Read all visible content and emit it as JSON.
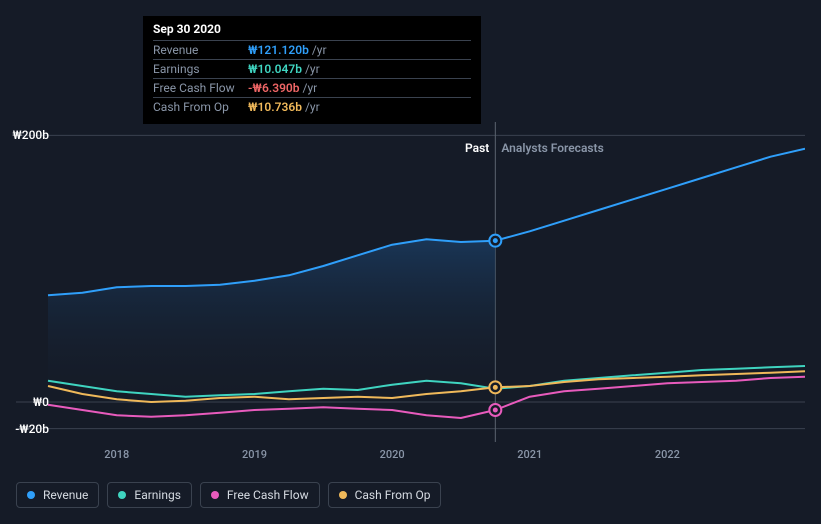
{
  "chart": {
    "sectionLabels": {
      "past": "Past",
      "forecast": "Analysts Forecasts"
    },
    "sectionLabelColors": {
      "past": "#ffffff",
      "forecast": "#8a96a8"
    },
    "yAxis": {
      "ticks": [
        {
          "value": 200,
          "label": "₩200b"
        },
        {
          "value": 0,
          "label": "₩0"
        },
        {
          "value": -20,
          "label": "-₩20b"
        }
      ],
      "min": -30,
      "max": 210
    },
    "xAxis": {
      "min": 2017.5,
      "max": 2023.0,
      "ticks": [
        {
          "value": 2018,
          "label": "2018"
        },
        {
          "value": 2019,
          "label": "2019"
        },
        {
          "value": 2020,
          "label": "2020"
        },
        {
          "value": 2021,
          "label": "2021"
        },
        {
          "value": 2022,
          "label": "2022"
        }
      ],
      "divider": 2020.75
    },
    "plot": {
      "leftPx": 32,
      "rightPx": 789,
      "topPx": 0,
      "bottomPx": 320
    },
    "gradient": {
      "from": "#1a3a5e",
      "to": "#151b27"
    },
    "series": [
      {
        "id": "revenue",
        "label": "Revenue",
        "color": "#2f9ffa",
        "data": [
          [
            2017.5,
            80
          ],
          [
            2017.75,
            82
          ],
          [
            2018.0,
            86
          ],
          [
            2018.25,
            87
          ],
          [
            2018.5,
            87
          ],
          [
            2018.75,
            88
          ],
          [
            2019.0,
            91
          ],
          [
            2019.25,
            95
          ],
          [
            2019.5,
            102
          ],
          [
            2019.75,
            110
          ],
          [
            2020.0,
            118
          ],
          [
            2020.25,
            122
          ],
          [
            2020.5,
            120
          ],
          [
            2020.75,
            121
          ],
          [
            2021.0,
            128
          ],
          [
            2021.25,
            136
          ],
          [
            2021.5,
            144
          ],
          [
            2021.75,
            152
          ],
          [
            2022.0,
            160
          ],
          [
            2022.25,
            168
          ],
          [
            2022.5,
            176
          ],
          [
            2022.75,
            184
          ],
          [
            2023.0,
            190
          ]
        ]
      },
      {
        "id": "earnings",
        "label": "Earnings",
        "color": "#3fd4c0",
        "data": [
          [
            2017.5,
            16
          ],
          [
            2017.75,
            12
          ],
          [
            2018.0,
            8
          ],
          [
            2018.25,
            6
          ],
          [
            2018.5,
            4
          ],
          [
            2018.75,
            5
          ],
          [
            2019.0,
            6
          ],
          [
            2019.25,
            8
          ],
          [
            2019.5,
            10
          ],
          [
            2019.75,
            9
          ],
          [
            2020.0,
            13
          ],
          [
            2020.25,
            16
          ],
          [
            2020.5,
            14
          ],
          [
            2020.75,
            10
          ],
          [
            2021.0,
            12
          ],
          [
            2021.25,
            16
          ],
          [
            2021.5,
            18
          ],
          [
            2021.75,
            20
          ],
          [
            2022.0,
            22
          ],
          [
            2022.25,
            24
          ],
          [
            2022.5,
            25
          ],
          [
            2022.75,
            26
          ],
          [
            2023.0,
            27
          ]
        ]
      },
      {
        "id": "fcf",
        "label": "Free Cash Flow",
        "color": "#e85bbd",
        "data": [
          [
            2017.5,
            -2
          ],
          [
            2017.75,
            -6
          ],
          [
            2018.0,
            -10
          ],
          [
            2018.25,
            -11
          ],
          [
            2018.5,
            -10
          ],
          [
            2018.75,
            -8
          ],
          [
            2019.0,
            -6
          ],
          [
            2019.25,
            -5
          ],
          [
            2019.5,
            -4
          ],
          [
            2019.75,
            -5
          ],
          [
            2020.0,
            -6
          ],
          [
            2020.25,
            -10
          ],
          [
            2020.5,
            -12
          ],
          [
            2020.75,
            -6
          ],
          [
            2021.0,
            4
          ],
          [
            2021.25,
            8
          ],
          [
            2021.5,
            10
          ],
          [
            2021.75,
            12
          ],
          [
            2022.0,
            14
          ],
          [
            2022.25,
            15
          ],
          [
            2022.5,
            16
          ],
          [
            2022.75,
            18
          ],
          [
            2023.0,
            19
          ]
        ]
      },
      {
        "id": "cfo",
        "label": "Cash From Op",
        "color": "#f0b95a",
        "data": [
          [
            2017.5,
            12
          ],
          [
            2017.75,
            6
          ],
          [
            2018.0,
            2
          ],
          [
            2018.25,
            0
          ],
          [
            2018.5,
            1
          ],
          [
            2018.75,
            3
          ],
          [
            2019.0,
            4
          ],
          [
            2019.25,
            2
          ],
          [
            2019.5,
            3
          ],
          [
            2019.75,
            4
          ],
          [
            2020.0,
            3
          ],
          [
            2020.25,
            6
          ],
          [
            2020.5,
            8
          ],
          [
            2020.75,
            11
          ],
          [
            2021.0,
            12
          ],
          [
            2021.25,
            15
          ],
          [
            2021.5,
            17
          ],
          [
            2021.75,
            18
          ],
          [
            2022.0,
            19
          ],
          [
            2022.25,
            20
          ],
          [
            2022.5,
            21
          ],
          [
            2022.75,
            22
          ],
          [
            2023.0,
            23
          ]
        ]
      }
    ],
    "tooltip": {
      "title": "Sep 30 2020",
      "unit": "/yr",
      "rows": [
        {
          "label": "Revenue",
          "value": "₩121.120b",
          "color": "#2f9ffa"
        },
        {
          "label": "Earnings",
          "value": "₩10.047b",
          "color": "#3fd4c0"
        },
        {
          "label": "Free Cash Flow",
          "value": "-₩6.390b",
          "color": "#f06666"
        },
        {
          "label": "Cash From Op",
          "value": "₩10.736b",
          "color": "#f0b95a"
        }
      ],
      "leftPx": 127,
      "topPx": 0
    },
    "markersAtX": 2020.75,
    "markers": [
      {
        "series": "revenue",
        "y": 121,
        "color": "#2f9ffa"
      },
      {
        "series": "cfo",
        "y": 11,
        "color": "#f0b95a"
      },
      {
        "series": "fcf",
        "y": -6,
        "color": "#e85bbd"
      }
    ]
  }
}
